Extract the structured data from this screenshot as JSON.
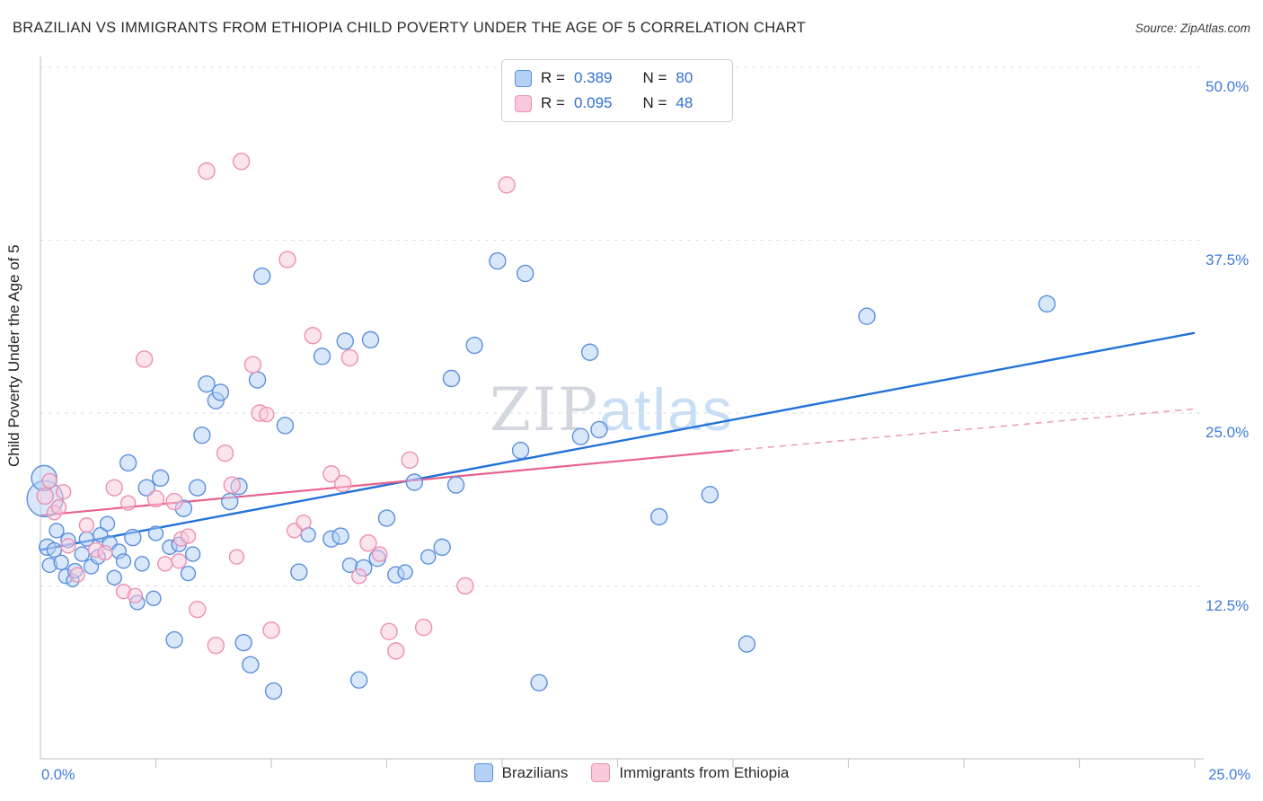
{
  "header": {
    "title": "BRAZILIAN VS IMMIGRANTS FROM ETHIOPIA CHILD POVERTY UNDER THE AGE OF 5 CORRELATION CHART",
    "source": "Source: ZipAtlas.com"
  },
  "watermark": {
    "part1": "ZIP",
    "part2": "atlas"
  },
  "legend_labels": {
    "r": "R =",
    "n": "N ="
  },
  "chart_data": {
    "type": "scatter",
    "title": "Brazilian vs Immigrants from Ethiopia Child Poverty Under the Age of 5 Correlation Chart",
    "xlabel": "",
    "ylabel": "Child Poverty Under the Age of 5",
    "xlim": [
      0,
      25
    ],
    "ylim": [
      0,
      50
    ],
    "grid": true,
    "x_ticks": [
      {
        "value": 0,
        "label": "0.0%"
      },
      {
        "value": 25,
        "label": "25.0%"
      }
    ],
    "y_ticks": [
      {
        "value": 12.5,
        "label": "12.5%"
      },
      {
        "value": 25,
        "label": "25.0%"
      },
      {
        "value": 37.5,
        "label": "37.5%"
      },
      {
        "value": 50,
        "label": "50.0%"
      }
    ],
    "x_minor_tick_step": 2.5,
    "series": [
      {
        "name": "Brazilians",
        "R": "0.389",
        "N": "80",
        "fill": "#b3d0f5",
        "stroke": "#5b8fdd",
        "points": [
          [
            0.1,
            18.8,
            20
          ],
          [
            0.08,
            20.3,
            14
          ],
          [
            0.15,
            15.3,
            9
          ],
          [
            0.2,
            14.0,
            8
          ],
          [
            0.3,
            15.1,
            8
          ],
          [
            0.35,
            16.5,
            8
          ],
          [
            0.45,
            14.2,
            8
          ],
          [
            0.55,
            13.2,
            8
          ],
          [
            0.6,
            15.8,
            8
          ],
          [
            0.7,
            12.9,
            7
          ],
          [
            0.75,
            13.6,
            8
          ],
          [
            0.9,
            14.8,
            8
          ],
          [
            1.0,
            15.9,
            8
          ],
          [
            1.1,
            13.9,
            8
          ],
          [
            1.25,
            14.6,
            8
          ],
          [
            1.3,
            16.2,
            8
          ],
          [
            1.45,
            17.0,
            8
          ],
          [
            1.5,
            15.6,
            8
          ],
          [
            1.6,
            13.1,
            8
          ],
          [
            1.7,
            15.0,
            8
          ],
          [
            1.8,
            14.3,
            8
          ],
          [
            1.9,
            21.4,
            9
          ],
          [
            2.0,
            16.0,
            9
          ],
          [
            2.1,
            11.3,
            8
          ],
          [
            2.2,
            14.1,
            8
          ],
          [
            2.3,
            19.6,
            9
          ],
          [
            2.45,
            11.6,
            8
          ],
          [
            2.5,
            16.3,
            8
          ],
          [
            2.6,
            20.3,
            9
          ],
          [
            2.8,
            15.3,
            8
          ],
          [
            2.9,
            8.6,
            9
          ],
          [
            3.0,
            15.5,
            8
          ],
          [
            3.1,
            18.1,
            9
          ],
          [
            3.2,
            13.4,
            8
          ],
          [
            3.3,
            14.8,
            8
          ],
          [
            3.4,
            19.6,
            9
          ],
          [
            3.5,
            23.4,
            9
          ],
          [
            3.6,
            27.1,
            9
          ],
          [
            3.8,
            25.9,
            9
          ],
          [
            3.9,
            26.5,
            9
          ],
          [
            4.1,
            18.6,
            9
          ],
          [
            4.3,
            19.7,
            9
          ],
          [
            4.4,
            8.4,
            9
          ],
          [
            4.55,
            6.8,
            9
          ],
          [
            4.7,
            27.4,
            9
          ],
          [
            4.8,
            34.9,
            9
          ],
          [
            5.05,
            4.9,
            9
          ],
          [
            5.3,
            24.1,
            9
          ],
          [
            5.6,
            13.5,
            9
          ],
          [
            5.8,
            16.2,
            8
          ],
          [
            6.1,
            29.1,
            9
          ],
          [
            6.3,
            15.9,
            9
          ],
          [
            6.5,
            16.1,
            9
          ],
          [
            6.6,
            30.2,
            9
          ],
          [
            6.7,
            14.0,
            8
          ],
          [
            6.9,
            5.7,
            9
          ],
          [
            7.0,
            13.8,
            9
          ],
          [
            7.15,
            30.3,
            9
          ],
          [
            7.3,
            14.5,
            9
          ],
          [
            7.5,
            17.4,
            9
          ],
          [
            7.7,
            13.3,
            9
          ],
          [
            7.9,
            13.5,
            8
          ],
          [
            8.1,
            20.0,
            9
          ],
          [
            8.4,
            14.6,
            8
          ],
          [
            8.7,
            15.3,
            9
          ],
          [
            8.9,
            27.5,
            9
          ],
          [
            9.0,
            19.8,
            9
          ],
          [
            9.4,
            29.9,
            9
          ],
          [
            9.9,
            36.0,
            9
          ],
          [
            10.4,
            22.3,
            9
          ],
          [
            10.5,
            35.1,
            9
          ],
          [
            10.8,
            5.5,
            9
          ],
          [
            11.7,
            23.3,
            9
          ],
          [
            11.9,
            29.4,
            9
          ],
          [
            12.1,
            23.8,
            9
          ],
          [
            13.4,
            17.5,
            9
          ],
          [
            14.5,
            19.1,
            9
          ],
          [
            15.3,
            8.3,
            9
          ],
          [
            17.9,
            32.0,
            9
          ],
          [
            21.8,
            32.9,
            9
          ]
        ]
      },
      {
        "name": "Immigrants from Ethiopia",
        "R": "0.095",
        "N": "48",
        "fill": "#f9c9db",
        "stroke": "#ed8fb4",
        "points": [
          [
            0.1,
            19.0,
            9
          ],
          [
            0.2,
            20.1,
            8
          ],
          [
            0.3,
            17.8,
            8
          ],
          [
            0.4,
            18.2,
            8
          ],
          [
            0.5,
            19.3,
            8
          ],
          [
            0.6,
            15.4,
            8
          ],
          [
            0.8,
            13.3,
            8
          ],
          [
            1.0,
            16.9,
            8
          ],
          [
            1.2,
            15.1,
            8
          ],
          [
            1.4,
            14.9,
            8
          ],
          [
            1.6,
            19.6,
            9
          ],
          [
            1.8,
            12.1,
            8
          ],
          [
            1.9,
            18.5,
            8
          ],
          [
            2.05,
            11.8,
            8
          ],
          [
            2.25,
            28.9,
            9
          ],
          [
            2.5,
            18.8,
            9
          ],
          [
            2.7,
            14.1,
            8
          ],
          [
            2.9,
            18.6,
            9
          ],
          [
            3.0,
            14.3,
            8
          ],
          [
            3.05,
            15.9,
            8
          ],
          [
            3.2,
            16.1,
            8
          ],
          [
            3.4,
            10.8,
            9
          ],
          [
            3.6,
            42.5,
            9
          ],
          [
            3.8,
            8.2,
            9
          ],
          [
            4.0,
            22.1,
            9
          ],
          [
            4.15,
            19.8,
            9
          ],
          [
            4.25,
            14.6,
            8
          ],
          [
            4.35,
            43.2,
            9
          ],
          [
            4.6,
            28.5,
            9
          ],
          [
            4.75,
            25.0,
            9
          ],
          [
            4.9,
            24.9,
            8
          ],
          [
            5.0,
            9.3,
            9
          ],
          [
            5.35,
            36.1,
            9
          ],
          [
            5.5,
            16.5,
            8
          ],
          [
            5.7,
            17.1,
            8
          ],
          [
            5.9,
            30.6,
            9
          ],
          [
            6.3,
            20.6,
            9
          ],
          [
            6.55,
            19.9,
            9
          ],
          [
            6.7,
            29.0,
            9
          ],
          [
            6.9,
            13.2,
            8
          ],
          [
            7.1,
            15.6,
            9
          ],
          [
            7.35,
            14.8,
            8
          ],
          [
            7.55,
            9.2,
            9
          ],
          [
            7.7,
            7.8,
            9
          ],
          [
            8.0,
            21.6,
            9
          ],
          [
            8.3,
            9.5,
            9
          ],
          [
            9.2,
            12.5,
            9
          ],
          [
            10.1,
            41.5,
            9
          ]
        ]
      }
    ],
    "trend_lines": [
      {
        "series": "Brazilians",
        "color": "#2272d9",
        "width": 2.4,
        "dashed": false,
        "x1": 0,
        "y1": 15.1,
        "x2": 25,
        "y2": 30.8
      },
      {
        "series": "Immigrants from Ethiopia",
        "color": "#e8638c",
        "width": 2.2,
        "dashed": false,
        "x1": 0,
        "y1": 17.6,
        "x2": 15,
        "y2": 22.3
      },
      {
        "series": "Immigrants from Ethiopia (extrapolated)",
        "color": "#eda0bb",
        "width": 1.6,
        "dashed": true,
        "x1": 15,
        "y1": 22.3,
        "x2": 25,
        "y2": 25.3
      }
    ],
    "legend_position": "top-center",
    "colors": {
      "grid": "#dcdcdc",
      "axis": "#c9c9c9",
      "tick_label": "#3e7bdb",
      "accent_blue": "#2f6fd4"
    }
  }
}
